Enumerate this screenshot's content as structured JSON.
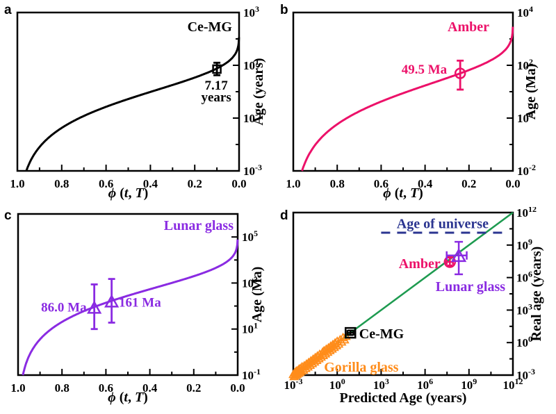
{
  "chart_data": [
    {
      "id": "a",
      "type": "line",
      "panel_letter": "a",
      "title": "Ce-MG",
      "color": "#000000",
      "x_axis": {
        "label": "ϕ (t, T)",
        "label_parts": [
          [
            "ϕ ",
            true
          ],
          [
            "(",
            false
          ],
          [
            "t",
            true
          ],
          [
            ", ",
            false
          ],
          [
            "T",
            true
          ],
          [
            ")",
            false
          ]
        ],
        "range": [
          1.0,
          0.0
        ],
        "major_ticks": [
          1.0,
          0.8,
          0.6,
          0.4,
          0.2,
          0.0
        ],
        "minor_ticks": [
          0.9,
          0.7,
          0.5,
          0.3,
          0.1
        ]
      },
      "y_axis": {
        "label": "Age (years)",
        "scale": "log",
        "range_exp": [
          -3,
          3
        ],
        "major_tick_exps": [
          3,
          1,
          -1,
          -3
        ],
        "minor_tick_exps": [
          2,
          0,
          -2
        ]
      },
      "curve_model": {
        "type": "stretched_exponential",
        "formula": "age = tau * (-ln(phi))^(1/beta)",
        "tau": 1.19,
        "beta": 0.45
      },
      "points": [
        {
          "shape": "square",
          "phi": 0.1,
          "age": 7.17,
          "age_err": [
            4.2,
            12.5
          ],
          "label": {
            "lines": [
              "7.17",
              "years"
            ],
            "anchor": "middle",
            "phi": 0.103,
            "ages": [
              1.75,
              0.62
            ]
          }
        }
      ]
    },
    {
      "id": "b",
      "type": "line",
      "panel_letter": "b",
      "title": "Amber",
      "color": "#EC1169",
      "x_axis": {
        "label": "ϕ (t, T)",
        "label_parts": [
          [
            "ϕ ",
            true
          ],
          [
            "(",
            false
          ],
          [
            "t",
            true
          ],
          [
            ", ",
            false
          ],
          [
            "T",
            true
          ],
          [
            ")",
            false
          ]
        ],
        "range": [
          1.0,
          0.0
        ],
        "major_ticks": [
          1.0,
          0.8,
          0.6,
          0.4,
          0.2,
          0.0
        ],
        "minor_ticks": [
          0.9,
          0.7,
          0.5,
          0.3,
          0.1
        ]
      },
      "y_axis": {
        "label": "Age (Ma)",
        "scale": "log",
        "range_exp": [
          -2,
          4
        ],
        "major_tick_exps": [
          4,
          2,
          0,
          -2
        ],
        "minor_tick_exps": [
          3,
          1,
          -1
        ]
      },
      "curve_model": {
        "type": "stretched_exponential",
        "formula": "age = tau * (-ln(phi))^(1/beta)",
        "tau": 21.1,
        "beta": 0.418
      },
      "points": [
        {
          "shape": "circle",
          "phi": 0.24,
          "age": 49.5,
          "age_err": [
            12,
            150
          ],
          "label": {
            "lines": [
              "49.5 Ma"
            ],
            "anchor": "end",
            "phi": 0.3,
            "ages": [
              70
            ]
          }
        }
      ]
    },
    {
      "id": "c",
      "type": "line",
      "panel_letter": "c",
      "title": "Lunar glass",
      "color": "#8A2BE2",
      "x_axis": {
        "label": "ϕ (t, T)",
        "label_parts": [
          [
            "ϕ ",
            true
          ],
          [
            "(",
            false
          ],
          [
            "t",
            true
          ],
          [
            ", ",
            false
          ],
          [
            "T",
            true
          ],
          [
            ")",
            false
          ]
        ],
        "range": [
          1.0,
          0.0
        ],
        "major_ticks": [
          1.0,
          0.8,
          0.6,
          0.4,
          0.2,
          0.0
        ],
        "minor_ticks": [
          0.9,
          0.7,
          0.5,
          0.3,
          0.1
        ]
      },
      "y_axis": {
        "label": "Age (Ma)",
        "scale": "log",
        "range_exp": [
          -1,
          6
        ],
        "major_tick_exps": [
          5,
          3,
          1,
          -1
        ],
        "minor_tick_exps": [
          6,
          4,
          2,
          0
        ]
      },
      "curve_model": {
        "type": "stretched_exponential",
        "formula": "age = tau * (-ln(phi))^(1/beta)",
        "tau": 657,
        "beta": 0.432
      },
      "points": [
        {
          "shape": "triangle",
          "phi": 0.653,
          "age": 86.0,
          "age_err": [
            10,
            870
          ],
          "label": {
            "lines": [
              "86.0 Ma"
            ],
            "anchor": "end",
            "phi": 0.688,
            "ages": [
              87
            ]
          }
        },
        {
          "shape": "triangle",
          "phi": 0.574,
          "age": 161,
          "age_err": [
            19,
            1500
          ],
          "label": {
            "lines": [
              "161 Ma"
            ],
            "anchor": "start",
            "phi": 0.541,
            "ages": [
              140
            ]
          }
        }
      ]
    },
    {
      "id": "d",
      "type": "scatter",
      "panel_letter": "d",
      "x_axis": {
        "label": "Predicted Age (years)",
        "scale": "log",
        "range_exp": [
          -3,
          12
        ],
        "major_tick_exps": [
          -3,
          0,
          3,
          6,
          9,
          12
        ],
        "minor_tick_exps": [
          -1.5,
          1.5,
          4.5,
          7.5,
          10.5
        ]
      },
      "y_axis": {
        "label": "Real age (years)",
        "scale": "log",
        "range_exp": [
          -3,
          12
        ],
        "major_tick_exps": [
          12,
          9,
          6,
          3,
          0,
          -3
        ],
        "minor_tick_exps": [
          10.5,
          7.5,
          4.5,
          1.5,
          -1.5
        ]
      },
      "identity_line": {
        "color": "#1E9B50",
        "from_exp": -3,
        "to_exp": 12
      },
      "universe_line": {
        "label": "Age of universe",
        "value_years": 13800000000.0,
        "x_span_exp": [
          3.0,
          11.5
        ],
        "color": "#2B3590",
        "label_pos_exp": {
          "x": 7.2,
          "y": 10.95
        }
      },
      "series": [
        {
          "name": "Gorilla glass",
          "color": "#FF8C1A",
          "marker": "triangle-small",
          "label": {
            "text": "Gorilla glass",
            "anchor": "start",
            "pos_exp": {
              "x": -0.9,
              "y": -2.3
            }
          },
          "points_log10": [
            [
              -3.0,
              -2.9
            ],
            [
              -2.95,
              -3.1
            ],
            [
              -2.9,
              -2.75
            ],
            [
              -2.85,
              -3.0
            ],
            [
              -2.8,
              -2.6
            ],
            [
              -2.75,
              -2.9
            ],
            [
              -2.7,
              -2.55
            ],
            [
              -2.65,
              -2.8
            ],
            [
              -2.6,
              -2.4
            ],
            [
              -2.55,
              -2.7
            ],
            [
              -2.5,
              -2.35
            ],
            [
              -2.45,
              -2.6
            ],
            [
              -2.4,
              -2.2
            ],
            [
              -2.3,
              -2.5
            ],
            [
              -2.25,
              -2.1
            ],
            [
              -2.15,
              -2.35
            ],
            [
              -2.1,
              -1.95
            ],
            [
              -2.0,
              -2.2
            ],
            [
              -1.95,
              -1.8
            ],
            [
              -1.85,
              -2.05
            ],
            [
              -1.8,
              -1.65
            ],
            [
              -1.7,
              -1.9
            ],
            [
              -1.65,
              -1.5
            ],
            [
              -1.55,
              -1.75
            ],
            [
              -1.5,
              -1.35
            ],
            [
              -1.4,
              -1.6
            ],
            [
              -1.35,
              -1.2
            ],
            [
              -1.25,
              -1.45
            ],
            [
              -1.2,
              -1.05
            ],
            [
              -1.1,
              -1.3
            ],
            [
              -1.0,
              -0.85
            ],
            [
              -0.95,
              -1.15
            ],
            [
              -0.9,
              -0.72
            ],
            [
              -0.8,
              -1.0
            ],
            [
              -0.75,
              -0.58
            ],
            [
              -0.65,
              -0.85
            ],
            [
              -0.6,
              -0.45
            ],
            [
              -0.5,
              -0.7
            ],
            [
              -0.45,
              -0.3
            ],
            [
              -0.35,
              -0.55
            ],
            [
              -0.3,
              -0.15
            ],
            [
              -0.2,
              -0.4
            ],
            [
              -0.15,
              0.0
            ],
            [
              -0.05,
              -0.25
            ],
            [
              0.0,
              0.15
            ],
            [
              0.1,
              -0.1
            ],
            [
              0.2,
              0.3
            ],
            [
              0.3,
              0.1
            ],
            [
              0.4,
              0.5
            ],
            [
              0.5,
              0.3
            ],
            [
              0.6,
              0.62
            ]
          ]
        },
        {
          "name": "Ce-MG",
          "color": "#000000",
          "marker": "square",
          "point": {
            "x": 8,
            "y": 8,
            "xerr": [
              5,
              13
            ],
            "yerr": [
              5,
              13
            ]
          },
          "label": {
            "text": "Ce-MG",
            "anchor": "start",
            "pos_exp": {
              "x": 1.5,
              "y": 0.78
            }
          }
        },
        {
          "name": "Amber",
          "color": "#EC1169",
          "marker": "circle",
          "point": {
            "x": 49500000.0,
            "y": 28000000.0,
            "xerr": [
              30000000.0,
              80000000.0
            ],
            "yerr": [
              13000000.0,
              70000000.0
            ]
          },
          "label": {
            "text": "Amber",
            "anchor": "end",
            "pos_exp": {
              "x": 7.05,
              "y": 7.25
            }
          }
        },
        {
          "name": "Lunar glass",
          "color": "#8A2BE2",
          "marker": "triangle",
          "point": {
            "x": 200000000.0,
            "y": 110000000.0,
            "xerr": [
              30000000.0,
              700000000.0
            ],
            "yerr": [
              2000000.0,
              2000000000.0
            ]
          },
          "label": {
            "text": "Lunar glass",
            "anchor": "middle",
            "pos_exp": {
              "x": 9.1,
              "y": 5.15
            }
          }
        }
      ]
    }
  ]
}
